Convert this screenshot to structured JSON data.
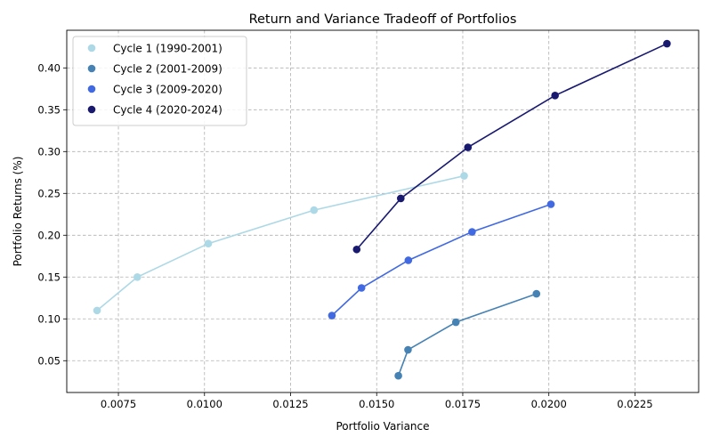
{
  "chart_data": {
    "type": "line",
    "title": "Return and Variance Tradeoff of Portfolios",
    "xlabel": "Portfolio Variance",
    "ylabel": "Portfolio Returns (%)",
    "xlim": [
      0.006,
      0.02435
    ],
    "ylim": [
      0.012,
      0.445
    ],
    "x_ticks": [
      0.0075,
      0.01,
      0.0125,
      0.015,
      0.0175,
      0.02,
      0.0225
    ],
    "x_tick_labels": [
      "0.0075",
      "0.0100",
      "0.0125",
      "0.0150",
      "0.0175",
      "0.0200",
      "0.0225"
    ],
    "y_ticks": [
      0.05,
      0.1,
      0.15,
      0.2,
      0.25,
      0.3,
      0.35,
      0.4
    ],
    "y_tick_labels": [
      "0.05",
      "0.10",
      "0.15",
      "0.20",
      "0.25",
      "0.30",
      "0.35",
      "0.40"
    ],
    "grid": true,
    "legend_position": "top-left",
    "series": [
      {
        "name": "Cycle 1 (1990-2001)",
        "color": "#add8e6",
        "x": [
          0.00688,
          0.00805,
          0.01011,
          0.01318,
          0.01754
        ],
        "y": [
          0.11,
          0.15,
          0.19,
          0.23,
          0.271
        ]
      },
      {
        "name": "Cycle 2 (2001-2009)",
        "color": "#4682b4",
        "x": [
          0.01563,
          0.01591,
          0.0173,
          0.01964
        ],
        "y": [
          0.032,
          0.063,
          0.096,
          0.13
        ]
      },
      {
        "name": "Cycle 3 (2009-2020)",
        "color": "#4169e1",
        "x": [
          0.0137,
          0.01456,
          0.01592,
          0.01777,
          0.02006
        ],
        "y": [
          0.104,
          0.137,
          0.17,
          0.204,
          0.237
        ]
      },
      {
        "name": "Cycle 4 (2020-2024)",
        "color": "#191970",
        "x": [
          0.01442,
          0.0157,
          0.01765,
          0.02018,
          0.02343
        ],
        "y": [
          0.183,
          0.244,
          0.305,
          0.367,
          0.429
        ]
      }
    ]
  }
}
